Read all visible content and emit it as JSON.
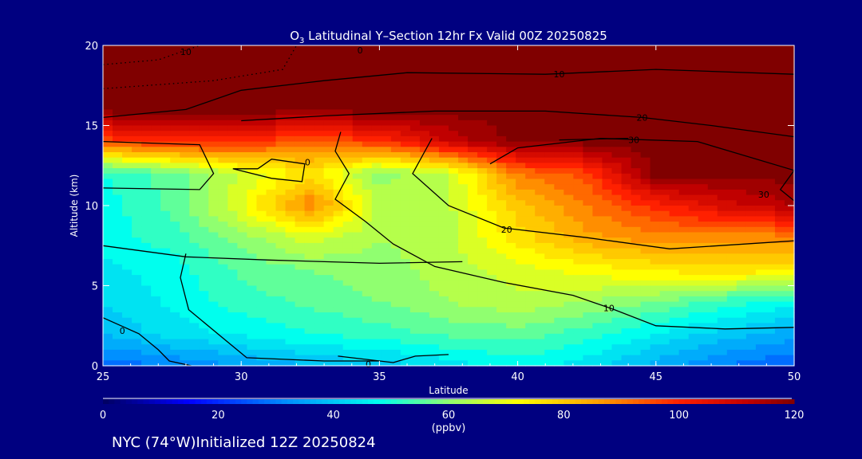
{
  "chart_data": {
    "type": "heatmap",
    "title": "O3 Latitudinal Y-Section 12hr  Fx Valid 00Z 20250825",
    "title_main": "O",
    "title_sub": "3",
    "title_rest": " Latitudinal Y–Section 12hr  Fx Valid 00Z 20250825",
    "xlabel": "Latitude",
    "ylabel": "Altitude (km)",
    "xlim": [
      25,
      50
    ],
    "ylim": [
      0,
      20
    ],
    "xticks": [
      "25",
      "30",
      "35",
      "40",
      "45",
      "50"
    ],
    "yticks": [
      "0",
      "5",
      "10",
      "15",
      "20"
    ],
    "x": [
      25,
      27.5,
      30,
      32.5,
      35,
      37.5,
      40,
      42.5,
      45,
      47.5,
      50
    ],
    "y": [
      0,
      2,
      4,
      6,
      8,
      10,
      12,
      14,
      16,
      18,
      20
    ],
    "values": [
      [
        28,
        30,
        34,
        38,
        40,
        44,
        48,
        44,
        36,
        30,
        26
      ],
      [
        38,
        44,
        47,
        50,
        52,
        55,
        56,
        52,
        46,
        40,
        36
      ],
      [
        42,
        47,
        52,
        55,
        58,
        62,
        65,
        62,
        58,
        52,
        48
      ],
      [
        45,
        48,
        55,
        58,
        60,
        64,
        68,
        72,
        75,
        77,
        75
      ],
      [
        48,
        52,
        60,
        68,
        62,
        65,
        76,
        85,
        88,
        88,
        88
      ],
      [
        48,
        55,
        70,
        90,
        64,
        65,
        80,
        90,
        100,
        108,
        114
      ],
      [
        50,
        56,
        66,
        76,
        60,
        66,
        90,
        96,
        120,
        120,
        120
      ],
      [
        95,
        100,
        100,
        92,
        98,
        110,
        120,
        120,
        120,
        120,
        120
      ],
      [
        120,
        120,
        120,
        120,
        120,
        120,
        120,
        120,
        120,
        120,
        120
      ],
      [
        120,
        120,
        120,
        120,
        120,
        120,
        120,
        120,
        120,
        120,
        120
      ],
      [
        120,
        120,
        120,
        120,
        120,
        120,
        120,
        120,
        120,
        120,
        120
      ]
    ],
    "colorbar": {
      "range": [
        0,
        120
      ],
      "ticks": [
        "0",
        "20",
        "40",
        "60",
        "80",
        "100",
        "120"
      ],
      "units": "(ppbv)",
      "stops": [
        [
          0,
          "#000060"
        ],
        [
          15,
          "#0000ff"
        ],
        [
          32,
          "#0090ff"
        ],
        [
          48,
          "#00ffee"
        ],
        [
          60,
          "#90ff70"
        ],
        [
          72,
          "#ffff00"
        ],
        [
          86,
          "#ffa000"
        ],
        [
          100,
          "#ff2000"
        ],
        [
          112,
          "#c00000"
        ],
        [
          120,
          "#800000"
        ]
      ]
    },
    "contours": [
      {
        "level": "10",
        "dotted": true,
        "points": [
          [
            25,
            18.8
          ],
          [
            27,
            19.1
          ],
          [
            28,
            19.7
          ],
          [
            28.5,
            20
          ]
        ],
        "label_at": [
          28,
          19.6
        ]
      },
      {
        "level": "0",
        "dotted": true,
        "points": [
          [
            25,
            17.3
          ],
          [
            29,
            17.8
          ],
          [
            31.5,
            18.5
          ],
          [
            32,
            20
          ]
        ],
        "label_at": [
          34.3,
          19.7
        ]
      },
      {
        "level": "10",
        "dotted": false,
        "points": [
          [
            25,
            15.5
          ],
          [
            28,
            16
          ],
          [
            30,
            17.2
          ],
          [
            33,
            17.8
          ],
          [
            36,
            18.3
          ],
          [
            41,
            18.2
          ],
          [
            45,
            18.5
          ],
          [
            50,
            18.2
          ]
        ],
        "label_at": [
          41.5,
          18.2
        ]
      },
      {
        "level": "20",
        "dotted": false,
        "points": [
          [
            25,
            14
          ],
          [
            28.5,
            13.8
          ],
          [
            29,
            12
          ],
          [
            28.5,
            11
          ],
          [
            25,
            11.1
          ]
        ],
        "label_at": null
      },
      {
        "level": "20",
        "dotted": false,
        "points": [
          [
            30,
            15.3
          ],
          [
            33,
            15.6
          ],
          [
            37,
            15.9
          ],
          [
            41,
            15.9
          ],
          [
            44.5,
            15.5
          ],
          [
            47,
            15
          ],
          [
            50,
            14.3
          ]
        ],
        "label_at": [
          44.5,
          15.5
        ]
      },
      {
        "level": "30",
        "dotted": false,
        "points": [
          [
            39,
            12.6
          ],
          [
            40,
            13.6
          ],
          [
            43,
            14.2
          ],
          [
            46.5,
            14
          ],
          [
            50,
            12.2
          ],
          [
            49.5,
            11
          ],
          [
            50,
            10.3
          ]
        ],
        "label_at": [
          48.9,
          10.7
        ]
      },
      {
        "level": "30",
        "dotted": false,
        "points": [
          [
            41.5,
            14.1
          ],
          [
            44,
            14.2
          ]
        ],
        "label_at": [
          44.2,
          14.1
        ]
      },
      {
        "level": "0",
        "dotted": false,
        "points": [
          [
            30.6,
            12.3
          ],
          [
            31.1,
            12.9
          ],
          [
            32.3,
            12.6
          ],
          [
            32.2,
            11.5
          ],
          [
            31.1,
            11.7
          ],
          [
            29.7,
            12.3
          ],
          [
            30.6,
            12.3
          ]
        ],
        "label_at": [
          32.4,
          12.7
        ]
      },
      {
        "level": "10",
        "dotted": false,
        "points": [
          [
            33.6,
            14.6
          ],
          [
            33.4,
            13.4
          ],
          [
            33.9,
            12
          ],
          [
            33.4,
            10.4
          ],
          [
            34.5,
            9
          ],
          [
            35.5,
            7.6
          ],
          [
            37,
            6.2
          ],
          [
            39.5,
            5.2
          ],
          [
            42,
            4.4
          ],
          [
            43.5,
            3.5
          ],
          [
            45,
            2.5
          ],
          [
            47.5,
            2.3
          ],
          [
            50,
            2.4
          ]
        ],
        "label_at": [
          43.3,
          3.6
        ]
      },
      {
        "level": "20",
        "dotted": false,
        "points": [
          [
            36.9,
            14.2
          ],
          [
            36.2,
            12
          ],
          [
            37.5,
            10
          ],
          [
            39.5,
            8.6
          ],
          [
            42.5,
            8
          ],
          [
            45.5,
            7.3
          ],
          [
            50,
            7.8
          ]
        ],
        "label_at": [
          39.6,
          8.5
        ]
      },
      {
        "level": "10",
        "dotted": false,
        "points": [
          [
            25,
            7.5
          ],
          [
            28,
            6.8
          ],
          [
            31,
            6.6
          ],
          [
            35,
            6.4
          ],
          [
            38,
            6.5
          ]
        ],
        "label_at": null
      },
      {
        "level": "0",
        "dotted": false,
        "points": [
          [
            28,
            7
          ],
          [
            27.8,
            5.5
          ],
          [
            28.1,
            3.5
          ],
          [
            29.5,
            1.5
          ],
          [
            30.2,
            0.5
          ],
          [
            33,
            0.3
          ],
          [
            35,
            0.3
          ]
        ],
        "label_at": null
      },
      {
        "level": "0",
        "dotted": false,
        "points": [
          [
            25,
            3
          ],
          [
            26.3,
            2
          ],
          [
            27,
            1
          ],
          [
            27.4,
            0.3
          ],
          [
            28.2,
            0
          ]
        ],
        "label_at": [
          25.7,
          2.2
        ]
      },
      {
        "level": "0",
        "dotted": false,
        "points": [
          [
            33.5,
            0.6
          ],
          [
            35.5,
            0.2
          ],
          [
            36.3,
            0.6
          ],
          [
            37.5,
            0.7
          ]
        ],
        "label_at": [
          34.6,
          0.1
        ]
      }
    ]
  },
  "footer": "NYC (74°W)Initialized 12Z 20250824"
}
